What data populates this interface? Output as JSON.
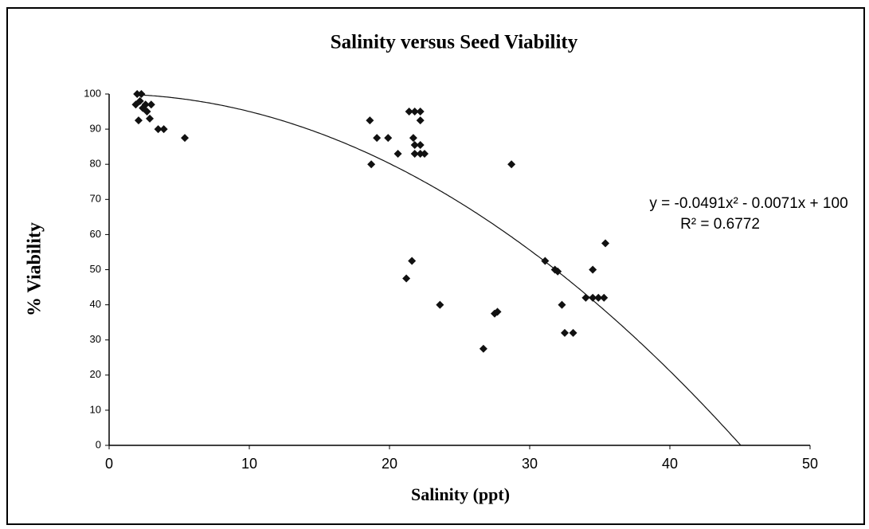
{
  "chart_data": {
    "type": "scatter",
    "title": "Salinity versus Seed Viability",
    "x_label": "Salinity (ppt)",
    "y_label": "% Viability",
    "xlim": [
      0,
      50
    ],
    "xticks": [
      0,
      10,
      20,
      30,
      40,
      50
    ],
    "ylim": [
      0,
      100
    ],
    "yticks": [
      0,
      10,
      20,
      30,
      40,
      50,
      60,
      70,
      80,
      90,
      100
    ],
    "grid": false,
    "color": "#111111",
    "x": [
      2.0,
      2.3,
      1.9,
      2.2,
      2.6,
      2.4,
      2.7,
      3.0,
      2.1,
      2.9,
      3.5,
      3.9,
      5.4,
      18.6,
      18.7,
      19.1,
      19.9,
      20.6,
      21.4,
      21.8,
      22.2,
      22.2,
      21.7,
      21.8,
      22.2,
      21.8,
      22.2,
      22.5,
      21.2,
      21.6,
      23.6,
      26.7,
      27.5,
      27.7,
      28.7,
      31.1,
      31.8,
      32.0,
      32.3,
      32.5,
      33.1,
      34.0,
      34.5,
      34.5,
      34.9,
      35.3,
      35.4
    ],
    "values": [
      100,
      100,
      97,
      98,
      97,
      96,
      95,
      97,
      92.5,
      93,
      90,
      90,
      87.5,
      92.5,
      80,
      87.5,
      87.5,
      83,
      95,
      95,
      95,
      92.5,
      87.5,
      85.5,
      85.5,
      83,
      83,
      83,
      47.5,
      52.5,
      40,
      27.5,
      37.5,
      38,
      80,
      52.5,
      50,
      49.5,
      40,
      32,
      32,
      42,
      42,
      50,
      42,
      42,
      57.5
    ],
    "trendline": {
      "coefficients": [
        -0.0491,
        -0.0071,
        100
      ],
      "color": "#111111"
    },
    "annotations": [
      "y = -0.0491x² - 0.0071x + 100",
      "R² = 0.6772"
    ]
  }
}
